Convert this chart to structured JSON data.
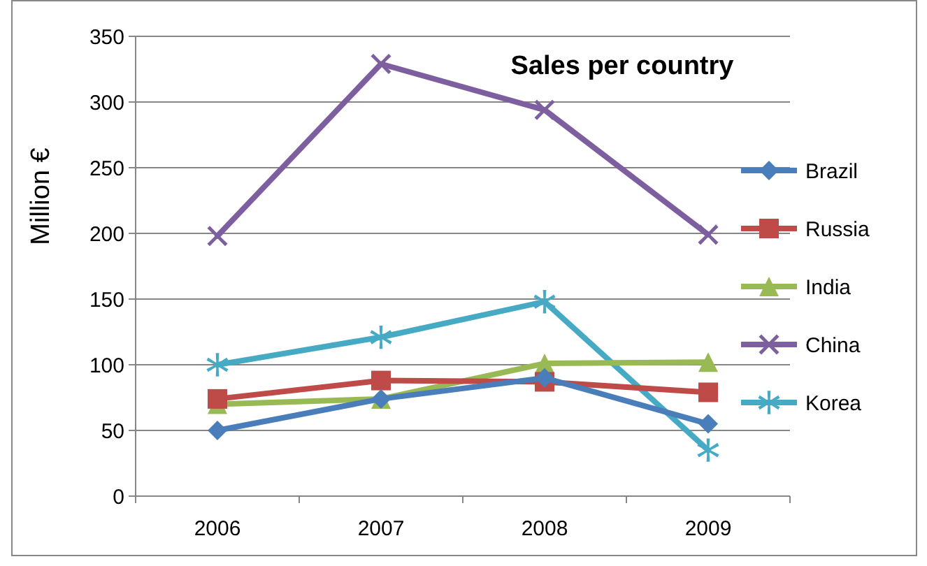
{
  "chart_data": {
    "type": "line",
    "title": "Sales per country",
    "ylabel": "Million €",
    "categories": [
      "2006",
      "2007",
      "2008",
      "2009"
    ],
    "series": [
      {
        "name": "Brazil",
        "color": "#4a7ebb",
        "marker": "diamond",
        "values": [
          50,
          74,
          90,
          55
        ]
      },
      {
        "name": "Russia",
        "color": "#be4b48",
        "marker": "square",
        "values": [
          74,
          88,
          87,
          79
        ]
      },
      {
        "name": "India",
        "color": "#98b954",
        "marker": "triangle",
        "values": [
          70,
          74,
          101,
          102
        ]
      },
      {
        "name": "China",
        "color": "#7d5fa0",
        "marker": "cross",
        "values": [
          198,
          329,
          294,
          199
        ]
      },
      {
        "name": "Korea",
        "color": "#46aac5",
        "marker": "star",
        "values": [
          100,
          121,
          148,
          35
        ]
      }
    ],
    "ylim": [
      0,
      350
    ],
    "yticks": [
      0,
      50,
      100,
      150,
      200,
      250,
      300,
      350
    ],
    "grid": "y",
    "legend": "right"
  }
}
